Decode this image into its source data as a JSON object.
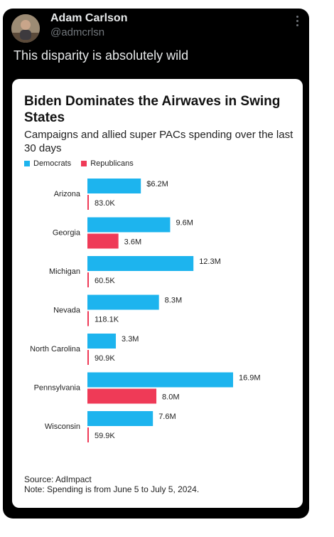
{
  "tweet": {
    "author_name": "Adam Carlson",
    "author_handle": "@admcrlsn",
    "text": "This disparity is absolutely wild",
    "more_icon": "more-vertical-icon"
  },
  "colors": {
    "democrats": "#1db4ee",
    "republicans": "#ef3a57"
  },
  "legend": {
    "democrats": "Democrats",
    "republicans": "Republicans"
  },
  "footnote": {
    "source": "Source: AdImpact",
    "note": "Note: Spending is from June 5 to July 5, 2024."
  },
  "chart_data": {
    "type": "bar",
    "orientation": "horizontal",
    "title": "Biden Dominates the Airwaves in Swing States",
    "subtitle": "Campaigns and allied super PACs spending over the last 30 days",
    "categories": [
      "Arizona",
      "Georgia",
      "Michigan",
      "Nevada",
      "North Carolina",
      "Pennsylvania",
      "Wisconsin"
    ],
    "series": [
      {
        "name": "Democrats",
        "values": [
          6200000,
          9600000,
          12300000,
          8300000,
          3300000,
          16900000,
          7600000
        ],
        "labels": [
          "$6.2M",
          "9.6M",
          "12.3M",
          "8.3M",
          "3.3M",
          "16.9M",
          "7.6M"
        ]
      },
      {
        "name": "Republicans",
        "values": [
          83000,
          3600000,
          60500,
          118100,
          90900,
          8000000,
          59900
        ],
        "labels": [
          "83.0K",
          "3.6M",
          "60.5K",
          "118.1K",
          "90.9K",
          "8.0M",
          "59.9K"
        ]
      }
    ],
    "legend_position": "top-left",
    "grid": false
  }
}
